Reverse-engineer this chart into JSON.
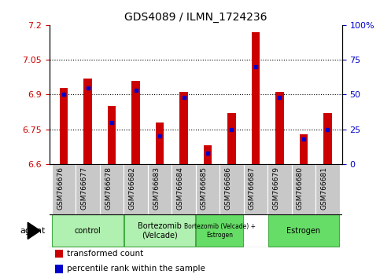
{
  "title": "GDS4089 / ILMN_1724236",
  "samples": [
    "GSM766676",
    "GSM766677",
    "GSM766678",
    "GSM766682",
    "GSM766683",
    "GSM766684",
    "GSM766685",
    "GSM766686",
    "GSM766687",
    "GSM766679",
    "GSM766680",
    "GSM766681"
  ],
  "transformed_count": [
    6.93,
    6.97,
    6.85,
    6.96,
    6.78,
    6.91,
    6.68,
    6.82,
    7.17,
    6.91,
    6.73,
    6.82
  ],
  "percentile_rank": [
    50,
    55,
    30,
    53,
    20,
    48,
    8,
    25,
    70,
    48,
    18,
    25
  ],
  "ylim_left": [
    6.6,
    7.2
  ],
  "ylim_right": [
    0,
    100
  ],
  "yticks_left": [
    6.6,
    6.75,
    6.9,
    7.05,
    7.2
  ],
  "ytick_labels_left": [
    "6.6",
    "6.75",
    "6.9",
    "7.05",
    "7.2"
  ],
  "yticks_right": [
    0,
    25,
    50,
    75,
    100
  ],
  "ytick_labels_right": [
    "0",
    "25",
    "50",
    "75",
    "100%"
  ],
  "hlines": [
    6.75,
    6.9,
    7.05
  ],
  "groups": [
    {
      "label": "control",
      "indices": [
        0,
        1,
        2
      ],
      "color": "#b0f0b0"
    },
    {
      "label": "Bortezomib\n(Velcade)",
      "indices": [
        3,
        4,
        5
      ],
      "color": "#b0f0b0"
    },
    {
      "label": "Bortezomib (Velcade) +\nEstrogen",
      "indices": [
        6,
        7
      ],
      "color": "#50e050"
    },
    {
      "label": "Estrogen",
      "indices": [
        9,
        10,
        11
      ],
      "color": "#50e050"
    }
  ],
  "bar_color": "#CC0000",
  "percentile_color": "#0000CC",
  "bar_width": 0.35,
  "left_axis_color": "#CC0000",
  "right_axis_color": "#0000CC",
  "xtick_bg_color": "#C8C8C8",
  "plot_bg_color": "#ffffff",
  "legend_items": [
    {
      "color": "#CC0000",
      "label": "transformed count"
    },
    {
      "color": "#0000CC",
      "label": "percentile rank within the sample"
    }
  ]
}
